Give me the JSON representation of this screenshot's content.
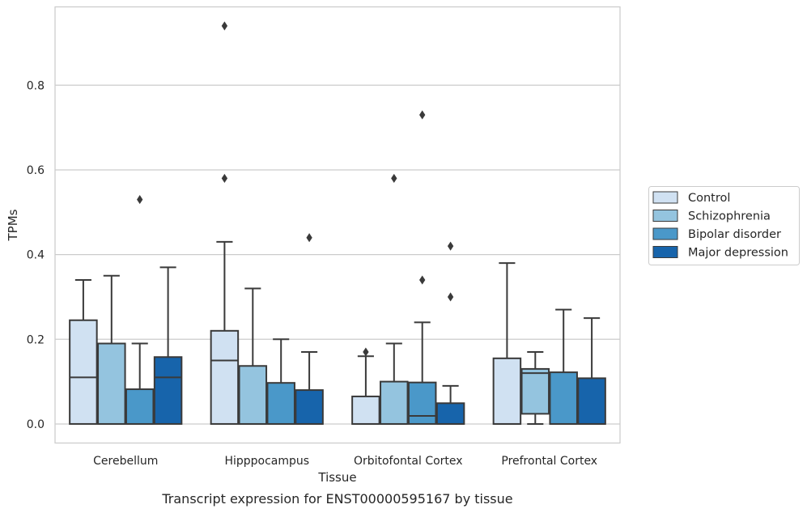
{
  "chart_data": {
    "type": "box",
    "title": "",
    "caption": "Transcript expression for ENST00000595167 by tissue",
    "xlabel": "Tissue",
    "ylabel": "TPMs",
    "ylim": [
      -0.045,
      0.985
    ],
    "yticks": [
      0.0,
      0.2,
      0.4,
      0.6,
      0.8
    ],
    "ytick_labels": [
      "0.0",
      "0.2",
      "0.4",
      "0.6",
      "0.8"
    ],
    "grid": "horizontal",
    "legend_placement": "right",
    "categories": [
      "Cerebellum",
      "Hipppocampus",
      "Orbitofontal Cortex",
      "Prefrontal Cortex"
    ],
    "series": [
      {
        "name": "Control",
        "color": "#d0e1f2",
        "boxes": [
          {
            "q1": 0.0,
            "median": 0.11,
            "q3": 0.245,
            "whisker_low": 0.0,
            "whisker_high": 0.34,
            "outliers": []
          },
          {
            "q1": 0.0,
            "median": 0.15,
            "q3": 0.22,
            "whisker_low": 0.0,
            "whisker_high": 0.43,
            "outliers": [
              0.58,
              0.94
            ]
          },
          {
            "q1": 0.0,
            "median": 0.0,
            "q3": 0.065,
            "whisker_low": 0.0,
            "whisker_high": 0.16,
            "outliers": [
              0.17
            ]
          },
          {
            "q1": 0.0,
            "median": 0.0,
            "q3": 0.155,
            "whisker_low": 0.0,
            "whisker_high": 0.38,
            "outliers": []
          }
        ]
      },
      {
        "name": "Schizophrenia",
        "color": "#94c4df",
        "boxes": [
          {
            "q1": 0.0,
            "median": 0.0,
            "q3": 0.19,
            "whisker_low": 0.0,
            "whisker_high": 0.35,
            "outliers": []
          },
          {
            "q1": 0.0,
            "median": 0.0,
            "q3": 0.137,
            "whisker_low": 0.0,
            "whisker_high": 0.32,
            "outliers": []
          },
          {
            "q1": 0.0,
            "median": 0.0,
            "q3": 0.1,
            "whisker_low": 0.0,
            "whisker_high": 0.19,
            "outliers": [
              0.58
            ]
          },
          {
            "q1": 0.024,
            "median": 0.12,
            "q3": 0.13,
            "whisker_low": 0.0,
            "whisker_high": 0.17,
            "outliers": []
          }
        ]
      },
      {
        "name": "Bipolar disorder",
        "color": "#4a98c9",
        "boxes": [
          {
            "q1": 0.0,
            "median": 0.0,
            "q3": 0.082,
            "whisker_low": 0.0,
            "whisker_high": 0.19,
            "outliers": [
              0.53
            ]
          },
          {
            "q1": 0.0,
            "median": 0.0,
            "q3": 0.097,
            "whisker_low": 0.0,
            "whisker_high": 0.2,
            "outliers": []
          },
          {
            "q1": 0.0,
            "median": 0.019,
            "q3": 0.098,
            "whisker_low": 0.0,
            "whisker_high": 0.24,
            "outliers": [
              0.34,
              0.73
            ]
          },
          {
            "q1": 0.0,
            "median": 0.0,
            "q3": 0.122,
            "whisker_low": 0.0,
            "whisker_high": 0.27,
            "outliers": []
          }
        ]
      },
      {
        "name": "Major depression",
        "color": "#1764ab",
        "boxes": [
          {
            "q1": 0.0,
            "median": 0.11,
            "q3": 0.158,
            "whisker_low": 0.0,
            "whisker_high": 0.37,
            "outliers": []
          },
          {
            "q1": 0.0,
            "median": 0.0,
            "q3": 0.08,
            "whisker_low": 0.0,
            "whisker_high": 0.17,
            "outliers": [
              0.44
            ]
          },
          {
            "q1": 0.0,
            "median": 0.0,
            "q3": 0.049,
            "whisker_low": 0.0,
            "whisker_high": 0.09,
            "outliers": [
              0.3,
              0.42
            ]
          },
          {
            "q1": 0.0,
            "median": 0.0,
            "q3": 0.108,
            "whisker_low": 0.0,
            "whisker_high": 0.25,
            "outliers": []
          }
        ]
      }
    ]
  }
}
